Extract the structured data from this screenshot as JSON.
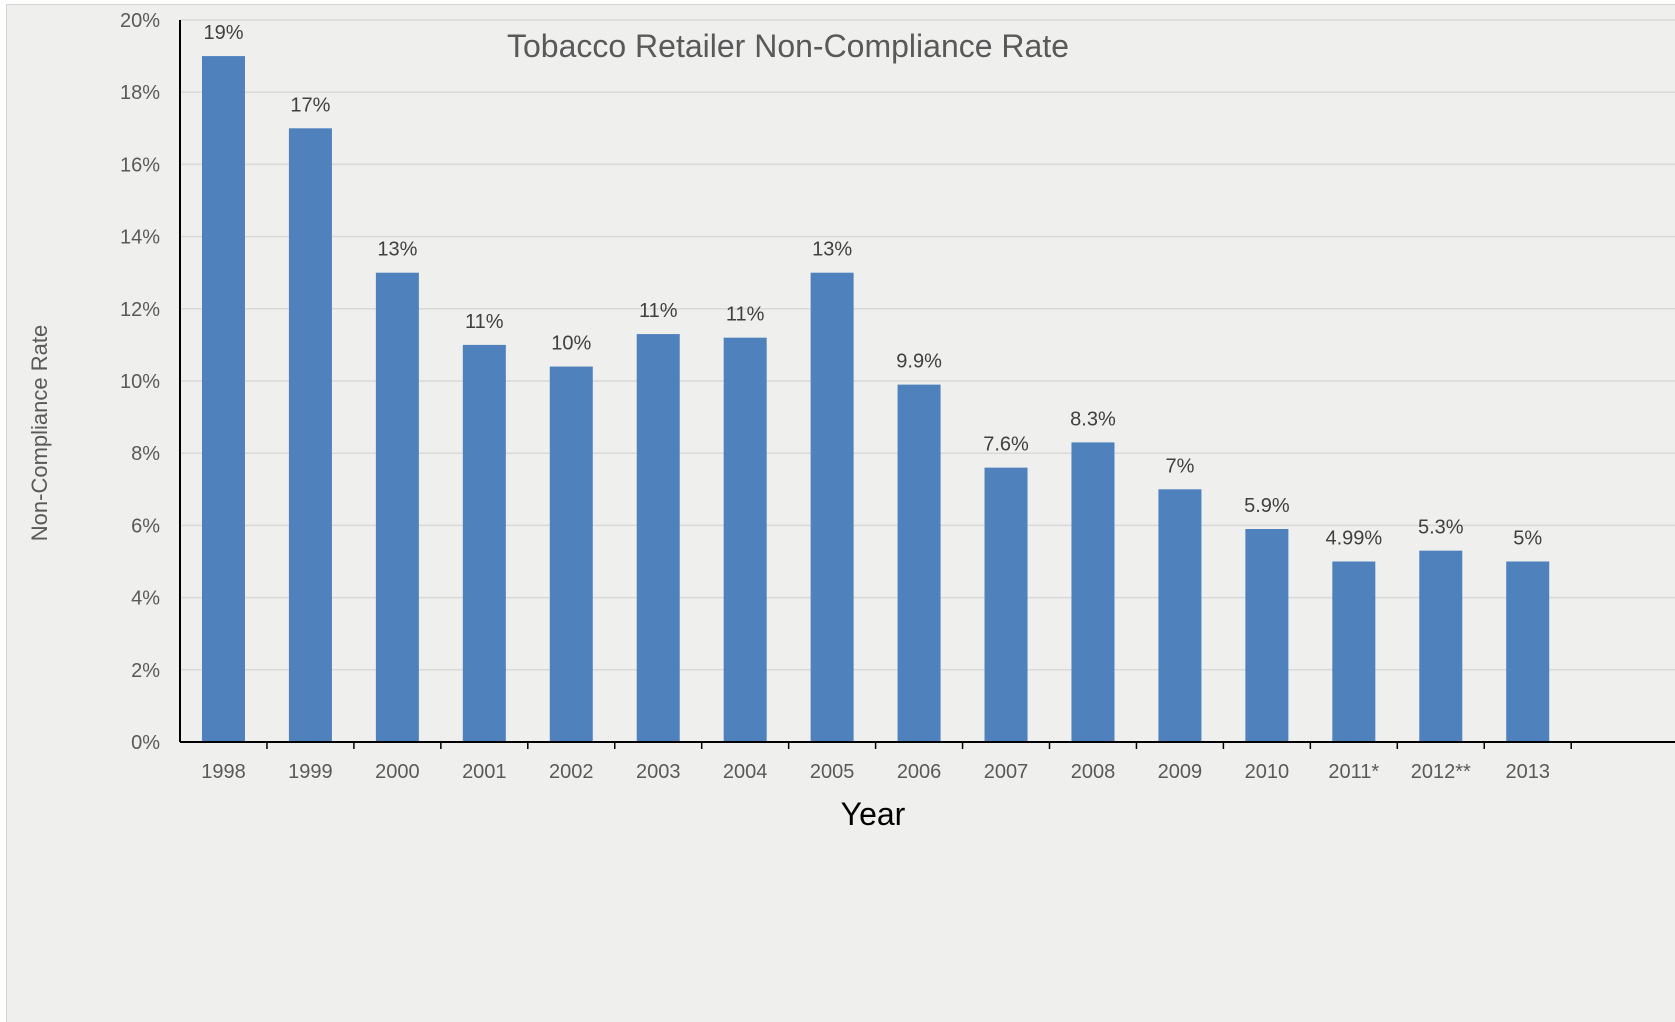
{
  "chart_data": {
    "type": "bar",
    "title": "Tobacco Retailer Non-Compliance Rate",
    "xlabel": "Year",
    "ylabel": "Non-Compliance Rate",
    "ylim": [
      0,
      20
    ],
    "ytick_step": 2,
    "ytick_suffix": "%",
    "grid": true,
    "legend": "none",
    "categories": [
      "1998",
      "1999",
      "2000",
      "2001",
      "2002",
      "2003",
      "2004",
      "2005",
      "2006",
      "2007",
      "2008",
      "2009",
      "2010",
      "2011*",
      "2012**",
      "2013"
    ],
    "values": [
      19,
      17,
      13,
      11,
      10.4,
      11.3,
      11.2,
      13,
      9.9,
      7.6,
      8.3,
      7,
      5.9,
      5.0,
      5.3,
      5
    ],
    "data_labels": [
      "19%",
      "17%",
      "13%",
      "11%",
      "10%",
      "11%",
      "11%",
      "13%",
      "9.9%",
      "7.6%",
      "8.3%",
      "7%",
      "5.9%",
      "4.99%",
      "5.3%",
      "5%"
    ],
    "colors": {
      "bar": "#4f81bd",
      "gridline": "#d9d9d9",
      "axis": "#000000",
      "background": "#efefed"
    }
  }
}
